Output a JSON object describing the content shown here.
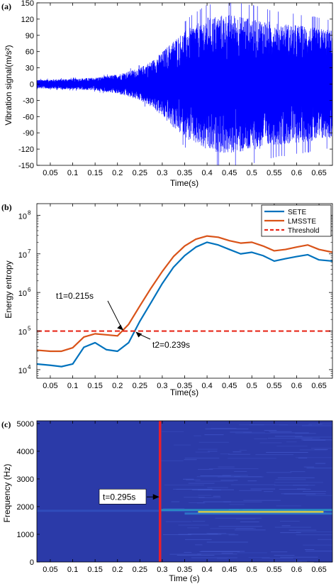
{
  "chart_data": [
    {
      "type": "line",
      "panel_label": "(a)",
      "xlabel": "Time(s)",
      "ylabel": "Vibration signal(m/s²)",
      "xlim": [
        0.02,
        0.68
      ],
      "ylim": [
        -150,
        150
      ],
      "xticks": [
        "0.05",
        "0.1",
        "0.15",
        "0.2",
        "0.25",
        "0.3",
        "0.35",
        "0.4",
        "0.45",
        "0.5",
        "0.55",
        "0.6",
        "0.65"
      ],
      "yticks": [
        "-150",
        "-120",
        "-90",
        "-60",
        "-30",
        "0",
        "30",
        "60",
        "90",
        "120",
        "150"
      ],
      "series": [
        {
          "color": "#0000ff",
          "envelope": {
            "t": [
              0.02,
              0.1,
              0.15,
              0.2,
              0.25,
              0.28,
              0.3,
              0.33,
              0.36,
              0.4,
              0.45,
              0.5,
              0.55,
              0.6,
              0.65,
              0.68
            ],
            "amplitude": [
              8,
              10,
              12,
              18,
              30,
              45,
              60,
              85,
              105,
              125,
              130,
              125,
              115,
              110,
              105,
              100
            ]
          }
        }
      ]
    },
    {
      "type": "line",
      "panel_label": "(b)",
      "xlabel": "Time(s)",
      "ylabel": "Energy entropy",
      "yscale": "log",
      "xlim": [
        0.02,
        0.68
      ],
      "ylim": [
        6000,
        200000000
      ],
      "xticks": [
        "0.05",
        "0.1",
        "0.15",
        "0.2",
        "0.25",
        "0.3",
        "0.35",
        "0.4",
        "0.45",
        "0.5",
        "0.55",
        "0.6",
        "0.65"
      ],
      "yticks": [
        {
          "value": 10000,
          "base": "10",
          "exp": "4"
        },
        {
          "value": 100000,
          "base": "10",
          "exp": "5"
        },
        {
          "value": 1000000,
          "base": "10",
          "exp": "6"
        },
        {
          "value": 10000000,
          "base": "10",
          "exp": "7"
        },
        {
          "value": 100000000,
          "base": "10",
          "exp": "8"
        }
      ],
      "legend_position": "top-right",
      "series": [
        {
          "name": "SETE",
          "color": "#0072bd",
          "x": [
            0.02,
            0.05,
            0.075,
            0.1,
            0.125,
            0.15,
            0.175,
            0.2,
            0.225,
            0.25,
            0.275,
            0.3,
            0.325,
            0.35,
            0.375,
            0.4,
            0.425,
            0.45,
            0.475,
            0.5,
            0.525,
            0.55,
            0.575,
            0.6,
            0.625,
            0.65,
            0.68
          ],
          "y": [
            14000,
            13000,
            12000,
            14000,
            38000,
            50000,
            33000,
            30000,
            50000,
            180000,
            550000,
            1700000,
            4500000,
            9000000,
            15000000,
            20000000,
            17000000,
            13000000,
            10000000,
            11000000,
            9000000,
            6500000,
            7500000,
            8500000,
            9500000,
            7000000,
            6500000
          ]
        },
        {
          "name": "LMSSTE",
          "color": "#d95319",
          "x": [
            0.02,
            0.05,
            0.075,
            0.1,
            0.125,
            0.15,
            0.175,
            0.2,
            0.225,
            0.25,
            0.275,
            0.3,
            0.325,
            0.35,
            0.375,
            0.4,
            0.425,
            0.45,
            0.475,
            0.5,
            0.525,
            0.55,
            0.575,
            0.6,
            0.625,
            0.65,
            0.68
          ],
          "y": [
            32000,
            30000,
            30000,
            37000,
            70000,
            85000,
            80000,
            75000,
            150000,
            450000,
            1300000,
            3500000,
            8500000,
            16000000,
            24000000,
            29000000,
            27000000,
            22000000,
            19000000,
            20000000,
            16000000,
            12000000,
            13000000,
            15000000,
            17000000,
            13000000,
            11000000
          ]
        },
        {
          "name": "Threshold",
          "color": "#e8291c",
          "dashed": true,
          "x": [
            0.02,
            0.68
          ],
          "y": [
            100000,
            100000
          ]
        }
      ],
      "annotations": [
        {
          "text": "t1=0.215s",
          "x": 0.215,
          "y": 100000
        },
        {
          "text": "t2=0.239s",
          "x": 0.239,
          "y": 100000
        }
      ]
    },
    {
      "type": "heatmap",
      "panel_label": "(c)",
      "xlabel": "Time (s)",
      "ylabel": "Frequency (Hz)",
      "xlim": [
        0.02,
        0.68
      ],
      "ylim": [
        0,
        5100
      ],
      "xticks": [
        "0.05",
        "0.1",
        "0.15",
        "0.2",
        "0.25",
        "0.3",
        "0.35",
        "0.4",
        "0.45",
        "0.5",
        "0.55",
        "0.6",
        "0.65"
      ],
      "yticks": [
        "0",
        "1000",
        "2000",
        "3000",
        "4000",
        "5000"
      ],
      "colormap": "parula",
      "background_color": "#2b3aa8",
      "marker_line": {
        "x": 0.295,
        "color": "#e8202c"
      },
      "annotation": {
        "text": "t=0.295s",
        "x": 0.295,
        "y": 2350
      },
      "bands": [
        {
          "freq_hz": 1850,
          "t_start": 0.02,
          "t_end": 0.68,
          "strength": 0.35
        },
        {
          "freq_hz": 1810,
          "t_start": 0.38,
          "t_end": 0.66,
          "strength": 0.9
        },
        {
          "freq_hz": 1880,
          "t_start": 0.295,
          "t_end": 0.68,
          "strength": 0.6
        },
        {
          "freq_hz": 1750,
          "t_start": 0.35,
          "t_end": 0.68,
          "strength": 0.55
        }
      ]
    }
  ]
}
